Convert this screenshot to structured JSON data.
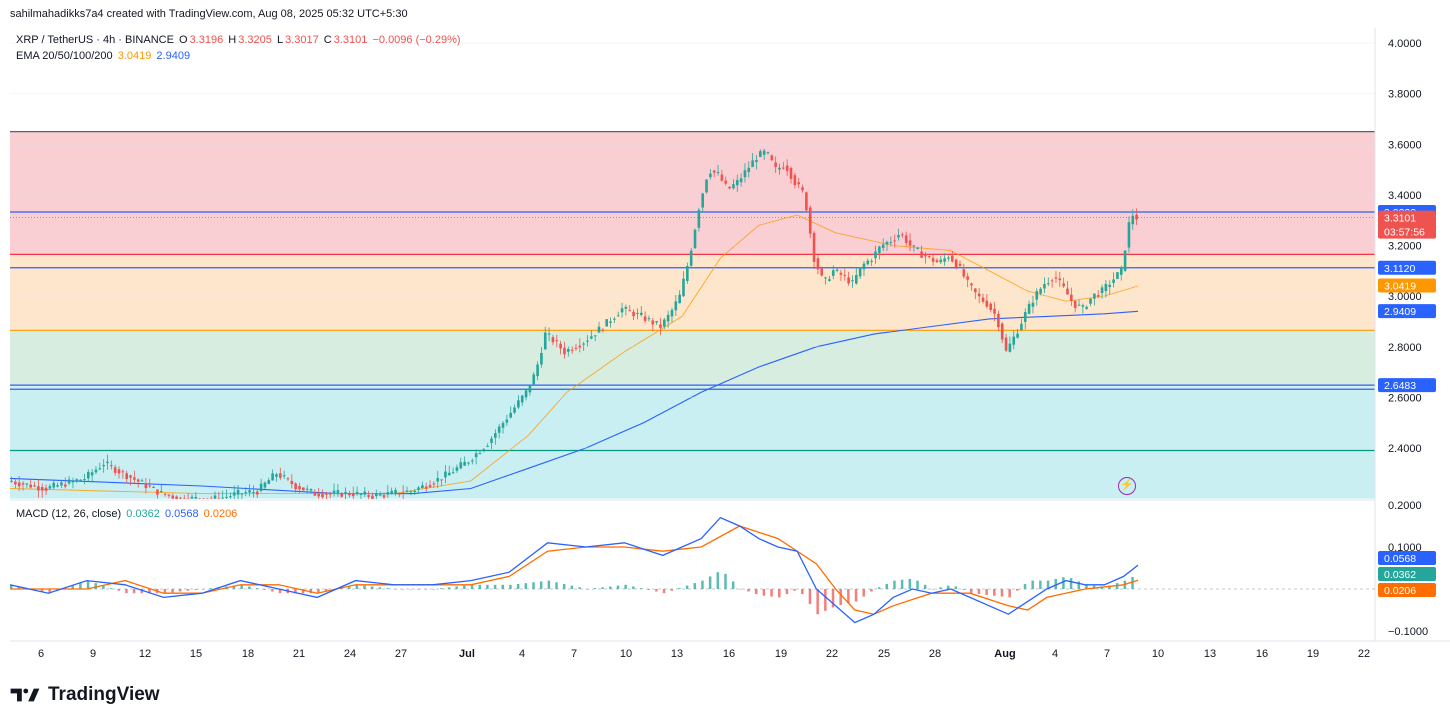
{
  "credit": "sahilmahadikks7a4 created with TradingView.com, Aug 08, 2025 05:32 UTC+5:30",
  "legend": {
    "symbol": "XRP / TetherUS · 4h · BINANCE",
    "o_label": "O",
    "o": "3.3196",
    "h_label": "H",
    "h": "3.3205",
    "l_label": "L",
    "l": "3.3017",
    "c_label": "C",
    "c": "3.3101",
    "change": "−0.0096 (−0.29%)",
    "ema_label": "EMA 20/50/100/200",
    "ema_a": "3.0419",
    "ema_b": "2.9409",
    "macd_label": "MACD (12, 26, close)",
    "macd_hist": "0.0362",
    "macd_line": "0.0568",
    "macd_signal": "0.0206"
  },
  "brand": "TradingView",
  "colors": {
    "up": "#26a69a",
    "down": "#ef5350",
    "ema_orange": "#ff9800",
    "ema_blue": "#2962ff",
    "macd_blue": "#2962ff",
    "macd_orange": "#ff6d00",
    "zone_red": "#f9cfd3",
    "zone_orange": "#fde6cc",
    "zone_green": "#d6ede0",
    "zone_cyan": "#c9eff3"
  },
  "chart_data": [
    {
      "type": "candlestick",
      "symbol": "XRP / TetherUS",
      "interval": "4h",
      "x_ticks": [
        "6",
        "9",
        "12",
        "15",
        "18",
        "21",
        "24",
        "27",
        "Jul",
        "4",
        "7",
        "10",
        "13",
        "16",
        "19",
        "22",
        "25",
        "28",
        "Aug",
        "4",
        "7",
        "10",
        "13",
        "16",
        "19",
        "22"
      ],
      "y_ticks": [
        "4.0000",
        "3.8000",
        "3.6000",
        "3.4000",
        "3.2000",
        "3.0000",
        "2.8000",
        "2.6000",
        "2.4000"
      ],
      "ylim": [
        2.2,
        4.05
      ],
      "price_labels": [
        {
          "value": "3.3322",
          "color": "#2962ff"
        },
        {
          "value": "3.3101",
          "sub": "03:57:56",
          "color": "#ef5350"
        },
        {
          "value": "3.1120",
          "color": "#2962ff"
        },
        {
          "value": "3.0419",
          "color": "#ff9800"
        },
        {
          "value": "2.9409",
          "color": "#2962ff"
        },
        {
          "value": "2.6483",
          "color": "#2962ff"
        }
      ],
      "horizontal_levels": [
        3.65,
        3.3322,
        3.165,
        3.112,
        2.865,
        2.6483,
        2.632,
        2.39
      ],
      "zones": [
        {
          "from": 3.165,
          "to": 3.65,
          "color": "#f9cfd3"
        },
        {
          "from": 2.865,
          "to": 3.165,
          "color": "#fde6cc"
        },
        {
          "from": 2.632,
          "to": 2.865,
          "color": "#d6ede0"
        },
        {
          "from": 2.2,
          "to": 2.632,
          "color": "#c9eff3"
        }
      ],
      "price_path": [
        [
          0,
          2.27
        ],
        [
          4,
          2.24
        ],
        [
          8,
          2.28
        ],
        [
          10,
          2.34
        ],
        [
          12,
          2.3
        ],
        [
          14,
          2.26
        ],
        [
          16,
          2.22
        ],
        [
          18,
          2.2
        ],
        [
          20,
          2.2
        ],
        [
          22,
          2.2
        ],
        [
          24,
          2.22
        ],
        [
          26,
          2.23
        ],
        [
          28,
          2.3
        ],
        [
          30,
          2.25
        ],
        [
          32,
          2.22
        ],
        [
          34,
          2.22
        ],
        [
          36,
          2.22
        ],
        [
          38,
          2.21
        ],
        [
          40,
          2.22
        ],
        [
          42,
          2.23
        ],
        [
          44,
          2.26
        ],
        [
          46,
          2.3
        ],
        [
          48,
          2.35
        ],
        [
          50,
          2.42
        ],
        [
          52,
          2.52
        ],
        [
          54,
          2.62
        ],
        [
          55,
          2.7
        ],
        [
          56,
          2.85
        ],
        [
          57,
          2.82
        ],
        [
          58,
          2.78
        ],
        [
          60,
          2.82
        ],
        [
          62,
          2.88
        ],
        [
          64,
          2.95
        ],
        [
          66,
          2.92
        ],
        [
          68,
          2.88
        ],
        [
          69,
          2.93
        ],
        [
          70,
          3.0
        ],
        [
          71,
          3.15
        ],
        [
          72,
          3.35
        ],
        [
          73,
          3.5
        ],
        [
          74,
          3.48
        ],
        [
          75,
          3.42
        ],
        [
          76,
          3.45
        ],
        [
          77,
          3.5
        ],
        [
          78,
          3.55
        ],
        [
          79,
          3.57
        ],
        [
          80,
          3.5
        ],
        [
          81,
          3.52
        ],
        [
          82,
          3.45
        ],
        [
          83,
          3.4
        ],
        [
          84,
          3.15
        ],
        [
          85,
          3.05
        ],
        [
          86,
          3.1
        ],
        [
          87,
          3.08
        ],
        [
          88,
          3.05
        ],
        [
          89,
          3.12
        ],
        [
          90,
          3.15
        ],
        [
          91,
          3.2
        ],
        [
          92,
          3.22
        ],
        [
          93,
          3.25
        ],
        [
          94,
          3.2
        ],
        [
          95,
          3.17
        ],
        [
          96,
          3.15
        ],
        [
          97,
          3.13
        ],
        [
          98,
          3.16
        ],
        [
          99,
          3.12
        ],
        [
          100,
          3.05
        ],
        [
          101,
          3.0
        ],
        [
          102,
          2.97
        ],
        [
          103,
          2.92
        ],
        [
          104,
          2.78
        ],
        [
          105,
          2.85
        ],
        [
          106,
          2.93
        ],
        [
          107,
          3.0
        ],
        [
          108,
          3.05
        ],
        [
          109,
          3.08
        ],
        [
          110,
          3.03
        ],
        [
          111,
          2.97
        ],
        [
          112,
          2.95
        ],
        [
          113,
          3.0
        ],
        [
          114,
          3.02
        ],
        [
          115,
          3.06
        ],
        [
          116,
          3.1
        ],
        [
          117,
          3.33
        ],
        [
          117.5,
          3.31
        ]
      ],
      "ema_orange_path": [
        [
          0,
          2.24
        ],
        [
          20,
          2.22
        ],
        [
          40,
          2.22
        ],
        [
          48,
          2.27
        ],
        [
          54,
          2.45
        ],
        [
          58,
          2.62
        ],
        [
          64,
          2.78
        ],
        [
          70,
          2.92
        ],
        [
          74,
          3.15
        ],
        [
          78,
          3.28
        ],
        [
          82,
          3.32
        ],
        [
          86,
          3.25
        ],
        [
          92,
          3.2
        ],
        [
          98,
          3.18
        ],
        [
          102,
          3.1
        ],
        [
          106,
          3.02
        ],
        [
          110,
          2.98
        ],
        [
          114,
          3.0
        ],
        [
          117.5,
          3.04
        ]
      ],
      "ema_blue_path": [
        [
          0,
          2.28
        ],
        [
          20,
          2.25
        ],
        [
          34,
          2.22
        ],
        [
          42,
          2.22
        ],
        [
          48,
          2.24
        ],
        [
          54,
          2.32
        ],
        [
          60,
          2.4
        ],
        [
          66,
          2.5
        ],
        [
          72,
          2.62
        ],
        [
          78,
          2.72
        ],
        [
          84,
          2.8
        ],
        [
          90,
          2.85
        ],
        [
          96,
          2.88
        ],
        [
          102,
          2.91
        ],
        [
          108,
          2.92
        ],
        [
          114,
          2.93
        ],
        [
          117.5,
          2.94
        ]
      ]
    },
    {
      "type": "line",
      "title": "MACD (12, 26, close)",
      "y_ticks": [
        "0.2000",
        "0.1000",
        "−0.1000"
      ],
      "ylim": [
        -0.13,
        0.21
      ],
      "value_labels": [
        {
          "value": "0.0568",
          "color": "#2962ff"
        },
        {
          "value": "0.0362",
          "color": "#26a69a"
        },
        {
          "value": "0.0206",
          "color": "#ff6d00"
        }
      ],
      "series": [
        {
          "name": "MACD",
          "color": "#2962ff",
          "points": [
            [
              0,
              0.01
            ],
            [
              4,
              -0.01
            ],
            [
              8,
              0.02
            ],
            [
              12,
              0.01
            ],
            [
              16,
              -0.02
            ],
            [
              20,
              -0.01
            ],
            [
              24,
              0.02
            ],
            [
              28,
              0.0
            ],
            [
              32,
              -0.02
            ],
            [
              36,
              0.02
            ],
            [
              40,
              0.01
            ],
            [
              44,
              0.01
            ],
            [
              48,
              0.02
            ],
            [
              52,
              0.04
            ],
            [
              56,
              0.11
            ],
            [
              60,
              0.1
            ],
            [
              64,
              0.11
            ],
            [
              68,
              0.08
            ],
            [
              72,
              0.12
            ],
            [
              74,
              0.17
            ],
            [
              76,
              0.15
            ],
            [
              78,
              0.12
            ],
            [
              80,
              0.1
            ],
            [
              82,
              0.09
            ],
            [
              84,
              0.0
            ],
            [
              86,
              -0.04
            ],
            [
              88,
              -0.08
            ],
            [
              90,
              -0.06
            ],
            [
              92,
              -0.02
            ],
            [
              94,
              0.0
            ],
            [
              96,
              -0.01
            ],
            [
              98,
              0.0
            ],
            [
              100,
              -0.02
            ],
            [
              102,
              -0.04
            ],
            [
              104,
              -0.06
            ],
            [
              106,
              -0.03
            ],
            [
              108,
              0.0
            ],
            [
              110,
              0.02
            ],
            [
              112,
              0.01
            ],
            [
              114,
              0.01
            ],
            [
              116,
              0.03
            ],
            [
              117.5,
              0.0568
            ]
          ]
        },
        {
          "name": "Signal",
          "color": "#ff6d00",
          "points": [
            [
              0,
              0.0
            ],
            [
              8,
              0.0
            ],
            [
              12,
              0.02
            ],
            [
              16,
              -0.01
            ],
            [
              20,
              -0.01
            ],
            [
              24,
              0.01
            ],
            [
              28,
              0.01
            ],
            [
              32,
              -0.01
            ],
            [
              36,
              0.01
            ],
            [
              40,
              0.01
            ],
            [
              44,
              0.01
            ],
            [
              48,
              0.01
            ],
            [
              52,
              0.03
            ],
            [
              56,
              0.09
            ],
            [
              60,
              0.1
            ],
            [
              64,
              0.1
            ],
            [
              68,
              0.09
            ],
            [
              72,
              0.1
            ],
            [
              76,
              0.15
            ],
            [
              80,
              0.12
            ],
            [
              84,
              0.06
            ],
            [
              86,
              0.0
            ],
            [
              88,
              -0.05
            ],
            [
              90,
              -0.06
            ],
            [
              92,
              -0.04
            ],
            [
              96,
              -0.01
            ],
            [
              100,
              -0.01
            ],
            [
              104,
              -0.04
            ],
            [
              106,
              -0.05
            ],
            [
              108,
              -0.02
            ],
            [
              112,
              0.0
            ],
            [
              116,
              0.01
            ],
            [
              117.5,
              0.0206
            ]
          ]
        }
      ]
    }
  ]
}
